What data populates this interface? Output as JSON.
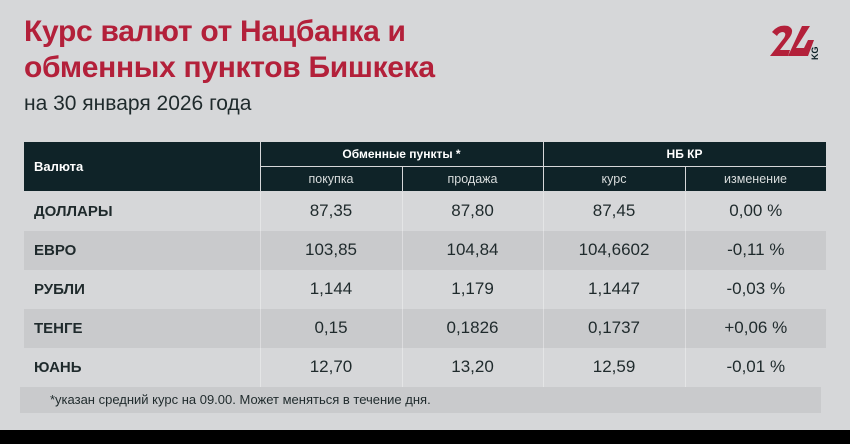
{
  "title_line1": "Курс валют от Нацбанка и",
  "title_line2": "обменных пунктов Бишкека",
  "subtitle": "на 30 января 2026 года",
  "logo": {
    "text": "24 KG",
    "color": "#b3203a"
  },
  "table": {
    "header": {
      "currency": "Валюта",
      "exchange": "Обменные пункты *",
      "nbkr": "НБ КР",
      "buy": "покупка",
      "sell": "продажа",
      "rate": "курс",
      "change": "изменение"
    },
    "rows": [
      {
        "name": "ДОЛЛАРЫ",
        "buy": "87,35",
        "sell": "87,80",
        "rate": "87,45",
        "change": "0,00 %"
      },
      {
        "name": "ЕВРО",
        "buy": "103,85",
        "sell": "104,84",
        "rate": "104,6602",
        "change": "-0,11 %"
      },
      {
        "name": "РУБЛИ",
        "buy": "1,144",
        "sell": "1,179",
        "rate": "1,1447",
        "change": "-0,03 %"
      },
      {
        "name": "ТЕНГЕ",
        "buy": "0,15",
        "sell": "0,1826",
        "rate": "0,1737",
        "change": "+0,06 %"
      },
      {
        "name": "ЮАНЬ",
        "buy": "12,70",
        "sell": "13,20",
        "rate": "12,59",
        "change": "-0,01 %"
      }
    ]
  },
  "footnote": "*указан средний курс на 09.00. Может меняться в течение дня."
}
